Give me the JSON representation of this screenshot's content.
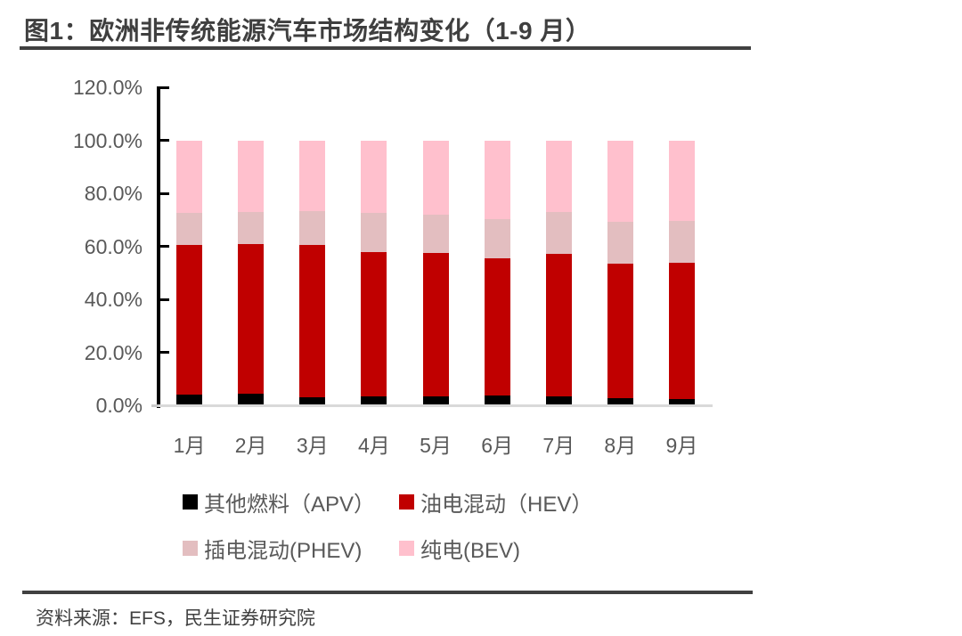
{
  "title": {
    "text": "图1：欧洲非传统能源汽车市场结构变化（1-9 月）"
  },
  "footer": {
    "source_label": "资料来源：EFS，民生证券研究院"
  },
  "colors": {
    "apv_black": "#000000",
    "hev_dark_red": "#c00000",
    "phev_dusty_pink": "#e3bec0",
    "bev_light_pink": "#ffc0cd",
    "axis_line": "#000000",
    "baseline_gray": "#d9d9d9",
    "tick_label_gray": "#595959",
    "title_gray": "#3f3f3f",
    "rule_gray": "#404040"
  },
  "chart_data": {
    "type": "bar",
    "stacked": true,
    "title": "欧洲非传统能源汽车市场结构变化（1-9 月）",
    "categories": [
      "1月",
      "2月",
      "3月",
      "4月",
      "5月",
      "6月",
      "7月",
      "8月",
      "9月"
    ],
    "series": [
      {
        "name": "其他燃料（APV）",
        "color": "#000000",
        "values": [
          4.0,
          4.5,
          3.0,
          3.4,
          3.3,
          3.7,
          3.4,
          2.6,
          2.2
        ]
      },
      {
        "name": "油电混动（HEV）",
        "color": "#c00000",
        "values": [
          56.4,
          56.2,
          57.4,
          54.5,
          54.1,
          51.7,
          53.6,
          50.8,
          51.5
        ]
      },
      {
        "name": "插电混动(PHEV)",
        "color": "#e3bec0",
        "values": [
          12.3,
          12.2,
          12.9,
          14.8,
          14.4,
          14.8,
          15.9,
          16.0,
          15.9
        ]
      },
      {
        "name": "纯电(BEV)",
        "color": "#ffc0cd",
        "values": [
          27.3,
          27.1,
          26.7,
          27.3,
          28.2,
          29.8,
          27.1,
          30.6,
          30.4
        ]
      }
    ],
    "xlabel": "",
    "ylabel": "",
    "ylim": [
      0,
      120
    ],
    "ytick_step": 20,
    "yticks": [
      "0.0%",
      "20.0%",
      "40.0%",
      "60.0%",
      "80.0%",
      "100.0%",
      "120.0%"
    ],
    "grid": false,
    "legend_position": "bottom",
    "units": "percent"
  }
}
